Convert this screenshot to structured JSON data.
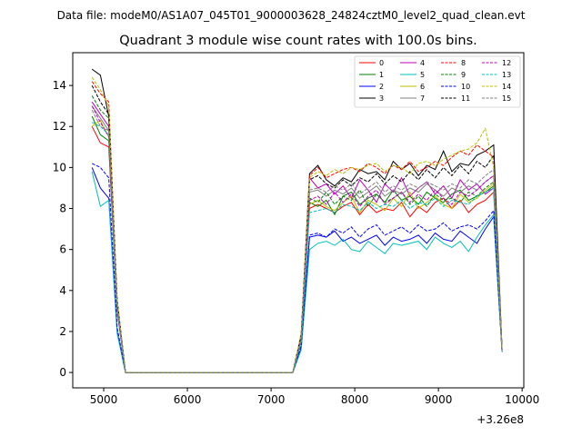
{
  "figure": {
    "suptitle": "Data file: modeM0/AS1A07_045T01_9000003628_24824cztM0_level2_quad_clean.evt",
    "title": "Quadrant 3 module wise count rates with 100.0s bins.",
    "x_offset_label": "+3.26e8"
  },
  "chart_data": {
    "type": "line",
    "title": "Quadrant 3 module wise count rates with 100.0s bins.",
    "xlabel": "",
    "ylabel": "",
    "x_offset": 326000000,
    "x_ticks": [
      5000,
      6000,
      7000,
      8000,
      9000,
      10000
    ],
    "x_tick_labels": [
      "5000",
      "6000",
      "7000",
      "8000",
      "9000",
      "10000"
    ],
    "y_ticks": [
      0,
      2,
      4,
      6,
      8,
      10,
      12,
      14
    ],
    "y_tick_labels": [
      "0",
      "2",
      "4",
      "6",
      "8",
      "10",
      "12",
      "14"
    ],
    "xlim": [
      4630,
      10020
    ],
    "ylim": [
      -0.75,
      15.6
    ],
    "grid": false,
    "legend_position": "upper right",
    "x": [
      4860,
      4960,
      5060,
      5160,
      5260,
      5360,
      5460,
      5560,
      5660,
      5760,
      5860,
      5960,
      6060,
      6160,
      6260,
      6360,
      6460,
      6560,
      6660,
      6760,
      6860,
      6960,
      7060,
      7160,
      7260,
      7360,
      7460,
      7560,
      7660,
      7760,
      7860,
      7960,
      8060,
      8160,
      8260,
      8360,
      8460,
      8560,
      8660,
      8760,
      8860,
      8960,
      9060,
      9160,
      9260,
      9360,
      9460,
      9560,
      9660,
      9760
    ],
    "x_partial": [
      5060,
      5060,
      5060,
      5060,
      5060,
      5060,
      5060,
      5060,
      5060,
      5060,
      5060,
      5060,
      5060,
      5060,
      5060,
      5060
    ],
    "series": [
      {
        "name": "0",
        "color": "#ff0000",
        "dash": "solid",
        "values": [
          12.0,
          11.2,
          11.0,
          3.0,
          0,
          0,
          0,
          0,
          0,
          0,
          0,
          0,
          0,
          0,
          0,
          0,
          0,
          0,
          0,
          0,
          0,
          0,
          0,
          0,
          0,
          1.5,
          8.0,
          8.2,
          8.0,
          7.8,
          8.1,
          8.3,
          7.7,
          8.2,
          7.8,
          8.0,
          7.9,
          8.3,
          7.6,
          8.1,
          7.8,
          8.3,
          8.5,
          8.0,
          8.4,
          7.8,
          8.2,
          8.4,
          8.8,
          1.0
        ]
      },
      {
        "name": "1",
        "color": "#008000",
        "dash": "solid",
        "values": [
          12.5,
          11.6,
          11.3,
          3.2,
          0,
          0,
          0,
          0,
          0,
          0,
          0,
          0,
          0,
          0,
          0,
          0,
          0,
          0,
          0,
          0,
          0,
          0,
          0,
          0,
          0,
          1.6,
          8.3,
          8.1,
          8.4,
          7.7,
          8.6,
          8.8,
          8.2,
          8.5,
          8.7,
          8.3,
          8.9,
          8.4,
          8.6,
          8.2,
          8.8,
          8.5,
          8.3,
          8.7,
          8.9,
          8.4,
          8.6,
          8.8,
          9.1,
          1.1
        ]
      },
      {
        "name": "2",
        "color": "#0000ff",
        "dash": "solid",
        "values": [
          10.0,
          9.0,
          8.5,
          2.0,
          0,
          0,
          0,
          0,
          0,
          0,
          0,
          0,
          0,
          0,
          0,
          0,
          0,
          0,
          0,
          0,
          0,
          0,
          0,
          0,
          0,
          1.2,
          6.6,
          6.7,
          6.6,
          6.9,
          6.4,
          6.6,
          6.3,
          6.5,
          6.7,
          6.2,
          6.6,
          6.4,
          6.5,
          6.7,
          6.3,
          6.8,
          6.5,
          6.4,
          6.9,
          6.6,
          6.3,
          7.0,
          7.6,
          1.0
        ]
      },
      {
        "name": "3",
        "color": "#000000",
        "dash": "solid",
        "values": [
          14.8,
          14.5,
          12.5,
          3.5,
          0,
          0,
          0,
          0,
          0,
          0,
          0,
          0,
          0,
          0,
          0,
          0,
          0,
          0,
          0,
          0,
          0,
          0,
          0,
          0,
          0,
          1.8,
          9.7,
          10.1,
          9.4,
          9.1,
          9.5,
          9.3,
          9.9,
          9.7,
          9.8,
          9.4,
          10.3,
          9.9,
          10.2,
          9.6,
          10.1,
          9.9,
          10.8,
          9.8,
          10.2,
          10.1,
          10.6,
          10.8,
          11.1,
          1.1
        ]
      },
      {
        "name": "4",
        "color": "#bf00bf",
        "dash": "solid",
        "values": [
          13.2,
          12.6,
          12.0,
          3.3,
          0,
          0,
          0,
          0,
          0,
          0,
          0,
          0,
          0,
          0,
          0,
          0,
          0,
          0,
          0,
          0,
          0,
          0,
          0,
          0,
          0,
          1.7,
          9.5,
          9.0,
          9.2,
          8.7,
          9.1,
          8.5,
          9.4,
          8.9,
          8.3,
          9.2,
          8.8,
          9.5,
          8.6,
          9.0,
          9.3,
          8.7,
          9.1,
          8.5,
          9.4,
          8.9,
          9.2,
          8.7,
          9.0,
          1.0
        ]
      },
      {
        "name": "5",
        "color": "#00bfbf",
        "dash": "solid",
        "values": [
          9.8,
          8.1,
          8.4,
          1.9,
          0,
          0,
          0,
          0,
          0,
          0,
          0,
          0,
          0,
          0,
          0,
          0,
          0,
          0,
          0,
          0,
          0,
          0,
          0,
          0,
          0,
          1.1,
          6.0,
          6.3,
          6.4,
          6.2,
          6.5,
          6.0,
          5.9,
          6.4,
          6.1,
          5.8,
          6.3,
          6.2,
          6.3,
          6.4,
          6.0,
          6.6,
          6.3,
          6.1,
          6.4,
          5.9,
          6.6,
          7.2,
          7.7,
          1.0
        ]
      },
      {
        "name": "6",
        "color": "#bfbf00",
        "dash": "solid",
        "values": [
          12.0,
          12.3,
          11.5,
          3.1,
          0,
          0,
          0,
          0,
          0,
          0,
          0,
          0,
          0,
          0,
          0,
          0,
          0,
          0,
          0,
          0,
          0,
          0,
          0,
          0,
          0,
          1.5,
          8.2,
          8.4,
          8.1,
          7.9,
          8.3,
          8.6,
          7.8,
          8.4,
          8.2,
          7.9,
          8.5,
          8.1,
          8.8,
          8.0,
          8.3,
          8.6,
          8.2,
          8.0,
          8.7,
          8.3,
          8.5,
          8.9,
          9.2,
          1.0
        ]
      },
      {
        "name": "7",
        "color": "#808080",
        "dash": "solid",
        "values": [
          13.0,
          12.4,
          11.8,
          3.2,
          0,
          0,
          0,
          0,
          0,
          0,
          0,
          0,
          0,
          0,
          0,
          0,
          0,
          0,
          0,
          0,
          0,
          0,
          0,
          0,
          0,
          1.6,
          8.8,
          8.9,
          8.6,
          8.9,
          8.7,
          9.0,
          8.5,
          8.8,
          9.1,
          8.6,
          8.9,
          8.7,
          9.0,
          8.8,
          9.2,
          8.9,
          8.6,
          9.0,
          8.8,
          9.1,
          8.9,
          9.3,
          9.6,
          1.1
        ]
      },
      {
        "name": "8",
        "color": "#ff0000",
        "dash": "dashed",
        "values": [
          14.2,
          13.6,
          13.2,
          3.6,
          0,
          0,
          0,
          0,
          0,
          0,
          0,
          0,
          0,
          0,
          0,
          0,
          0,
          0,
          0,
          0,
          0,
          0,
          0,
          0,
          0,
          1.9,
          9.6,
          10.0,
          9.5,
          9.7,
          9.9,
          10.0,
          9.8,
          10.2,
          10.0,
          9.7,
          10.1,
          9.9,
          10.3,
          9.8,
          10.0,
          10.3,
          10.1,
          10.5,
          10.8,
          10.6,
          11.1,
          10.8,
          10.5,
          1.1
        ]
      },
      {
        "name": "9",
        "color": "#008000",
        "dash": "dashed",
        "values": [
          13.5,
          12.8,
          12.4,
          3.4,
          0,
          0,
          0,
          0,
          0,
          0,
          0,
          0,
          0,
          0,
          0,
          0,
          0,
          0,
          0,
          0,
          0,
          0,
          0,
          0,
          0,
          1.7,
          8.5,
          8.3,
          8.8,
          8.2,
          8.6,
          8.4,
          8.9,
          8.1,
          8.7,
          8.3,
          8.5,
          8.8,
          8.2,
          8.6,
          8.1,
          8.7,
          8.4,
          8.5,
          8.3,
          8.8,
          8.6,
          9.0,
          9.3,
          1.0
        ]
      },
      {
        "name": "10",
        "color": "#0000ff",
        "dash": "dashed",
        "values": [
          10.2,
          10.0,
          9.5,
          2.2,
          0,
          0,
          0,
          0,
          0,
          0,
          0,
          0,
          0,
          0,
          0,
          0,
          0,
          0,
          0,
          0,
          0,
          0,
          0,
          0,
          0,
          1.3,
          6.7,
          6.8,
          6.6,
          7.0,
          6.8,
          7.1,
          6.6,
          7.0,
          7.2,
          6.7,
          6.9,
          7.1,
          6.8,
          7.2,
          6.9,
          7.0,
          7.3,
          6.9,
          7.1,
          7.2,
          7.0,
          7.4,
          7.9,
          1.0
        ]
      },
      {
        "name": "11",
        "color": "#000000",
        "dash": "dashed",
        "values": [
          14.0,
          13.2,
          12.6,
          3.5,
          0,
          0,
          0,
          0,
          0,
          0,
          0,
          0,
          0,
          0,
          0,
          0,
          0,
          0,
          0,
          0,
          0,
          0,
          0,
          0,
          0,
          1.8,
          9.4,
          9.6,
          9.2,
          9.0,
          9.4,
          9.1,
          9.5,
          9.3,
          9.7,
          9.2,
          9.6,
          9.3,
          9.8,
          9.4,
          9.9,
          9.5,
          10.0,
          9.6,
          10.1,
          9.7,
          10.3,
          10.0,
          10.6,
          1.1
        ]
      },
      {
        "name": "12",
        "color": "#bf00bf",
        "dash": "dashed",
        "values": [
          13.0,
          12.2,
          11.5,
          3.0,
          0,
          0,
          0,
          0,
          0,
          0,
          0,
          0,
          0,
          0,
          0,
          0,
          0,
          0,
          0,
          0,
          0,
          0,
          0,
          0,
          0,
          1.6,
          8.4,
          8.6,
          8.2,
          8.8,
          8.3,
          8.7,
          8.1,
          8.6,
          8.9,
          8.2,
          8.5,
          8.8,
          8.3,
          8.7,
          8.4,
          8.9,
          8.5,
          8.2,
          8.8,
          8.6,
          8.9,
          9.3,
          9.6,
          1.0
        ]
      },
      {
        "name": "13",
        "color": "#00bfbf",
        "dash": "dashed",
        "values": [
          12.2,
          12.0,
          11.6,
          3.1,
          0,
          0,
          0,
          0,
          0,
          0,
          0,
          0,
          0,
          0,
          0,
          0,
          0,
          0,
          0,
          0,
          0,
          0,
          0,
          0,
          0,
          1.5,
          7.8,
          7.9,
          8.0,
          7.8,
          8.2,
          8.1,
          7.9,
          8.3,
          8.0,
          8.2,
          8.1,
          8.4,
          8.0,
          8.3,
          8.2,
          8.5,
          8.1,
          8.4,
          8.3,
          8.2,
          8.6,
          8.8,
          9.0,
          1.0
        ]
      },
      {
        "name": "14",
        "color": "#bfbf00",
        "dash": "dashed",
        "values": [
          14.4,
          13.8,
          13.0,
          3.6,
          0,
          0,
          0,
          0,
          0,
          0,
          0,
          0,
          0,
          0,
          0,
          0,
          0,
          0,
          0,
          0,
          0,
          0,
          0,
          0,
          0,
          1.9,
          9.5,
          9.8,
          9.6,
          9.9,
          9.7,
          10.0,
          9.9,
          10.1,
          10.2,
          9.8,
          10.1,
          10.0,
          9.7,
          10.2,
          10.3,
          10.1,
          10.4,
          10.6,
          10.8,
          10.9,
          11.2,
          11.9,
          10.0,
          1.1
        ]
      },
      {
        "name": "15",
        "color": "#808080",
        "dash": "dashed",
        "values": [
          12.8,
          12.0,
          11.8,
          3.2,
          0,
          0,
          0,
          0,
          0,
          0,
          0,
          0,
          0,
          0,
          0,
          0,
          0,
          0,
          0,
          0,
          0,
          0,
          0,
          0,
          0,
          1.6,
          8.9,
          9.0,
          8.8,
          9.1,
          8.9,
          9.2,
          8.7,
          9.0,
          9.3,
          8.8,
          9.1,
          8.9,
          9.2,
          9.0,
          9.3,
          9.1,
          8.9,
          9.2,
          9.0,
          9.4,
          9.2,
          9.6,
          9.9,
          1.0
        ]
      }
    ]
  }
}
